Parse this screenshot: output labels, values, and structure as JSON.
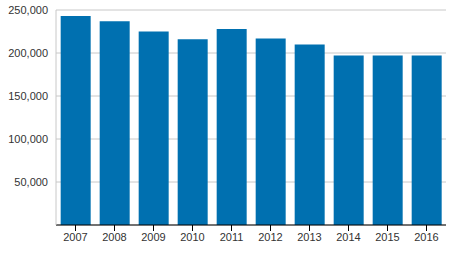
{
  "chart_data": {
    "type": "bar",
    "categories": [
      "2007",
      "2008",
      "2009",
      "2010",
      "2011",
      "2012",
      "2013",
      "2014",
      "2015",
      "2016"
    ],
    "values": [
      243000,
      237000,
      225000,
      216000,
      228000,
      217000,
      210000,
      197000,
      197000,
      197000
    ],
    "color": "#0070b0",
    "ylim": [
      0,
      250000
    ],
    "yticks": [
      {
        "value": 50000,
        "label": "50,000"
      },
      {
        "value": 100000,
        "label": "100,000"
      },
      {
        "value": 150000,
        "label": "150,000"
      },
      {
        "value": 200000,
        "label": "200,000"
      },
      {
        "value": 250000,
        "label": "250,000"
      }
    ],
    "grid": true
  }
}
